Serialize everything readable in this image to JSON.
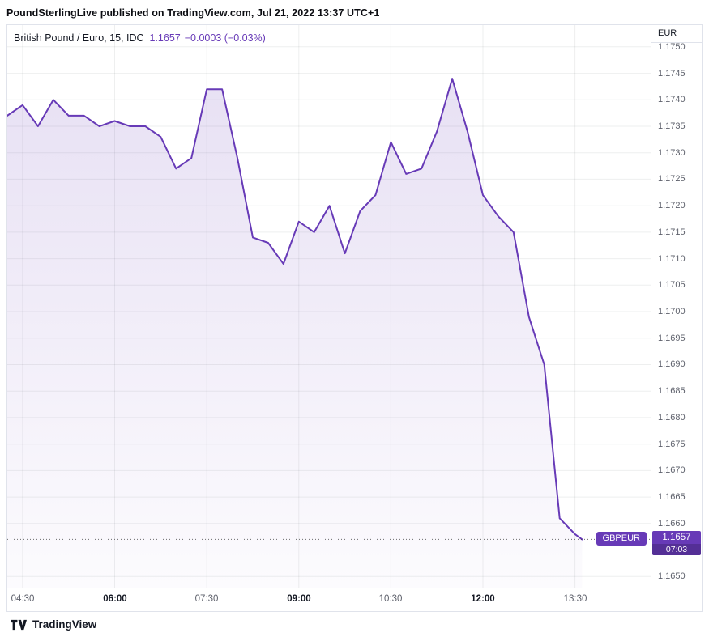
{
  "header": {
    "title": "PoundSterlingLive published on TradingView.com, Jul 21, 2022 13:37 UTC+1"
  },
  "legend": {
    "symbol": "British Pound / Euro, 15, IDC",
    "last_price": "1.1657",
    "change": "−0.0003 (−0.03%)"
  },
  "price_axis": {
    "currency": "EUR",
    "labels": [
      "1.1750",
      "1.1745",
      "1.1740",
      "1.1735",
      "1.1730",
      "1.1725",
      "1.1720",
      "1.1715",
      "1.1710",
      "1.1705",
      "1.1700",
      "1.1695",
      "1.1690",
      "1.1685",
      "1.1680",
      "1.1675",
      "1.1670",
      "1.1665",
      "1.1660",
      "1.1650"
    ],
    "badge_price": "1.1657",
    "badge_countdown": "07:03"
  },
  "price_line_badge": {
    "symbol": "GBPEUR"
  },
  "time_axis": {
    "labels": [
      {
        "text": "04:30",
        "major": false
      },
      {
        "text": "06:00",
        "major": true
      },
      {
        "text": "07:30",
        "major": false
      },
      {
        "text": "09:00",
        "major": true
      },
      {
        "text": "10:30",
        "major": false
      },
      {
        "text": "12:00",
        "major": true
      },
      {
        "text": "13:30",
        "major": false
      }
    ]
  },
  "footer": {
    "brand": "TradingView"
  },
  "colors": {
    "accent_purple": "#673ab7",
    "grid": "rgba(42,46,57,0.08)",
    "border": "#e0e3eb",
    "axis_text": "#5d606b",
    "text_dark": "#131722",
    "area_top": "rgba(103,58,183,0.17)",
    "area_bottom": "rgba(103,58,183,0.02)",
    "price_dots": "#3c3c3c"
  },
  "chart_data": {
    "type": "area",
    "title": "British Pound / Euro, 15, IDC",
    "ylabel": "EUR",
    "legend_position": "top-left",
    "grid": true,
    "x": [
      "04:15",
      "04:30",
      "04:45",
      "05:00",
      "05:15",
      "05:30",
      "05:45",
      "06:00",
      "06:15",
      "06:30",
      "06:45",
      "07:00",
      "07:15",
      "07:30",
      "07:45",
      "08:00",
      "08:15",
      "08:30",
      "08:45",
      "09:00",
      "09:15",
      "09:30",
      "09:45",
      "10:00",
      "10:15",
      "10:30",
      "10:45",
      "11:00",
      "11:15",
      "11:30",
      "11:45",
      "12:00",
      "12:15",
      "12:30",
      "12:45",
      "13:00",
      "13:15",
      "13:30",
      "13:37"
    ],
    "values": [
      1.1737,
      1.1739,
      1.1735,
      1.174,
      1.1737,
      1.1737,
      1.1735,
      1.1736,
      1.1735,
      1.1735,
      1.1733,
      1.1727,
      1.1729,
      1.1742,
      1.1742,
      1.1729,
      1.1714,
      1.1713,
      1.1709,
      1.1717,
      1.1715,
      1.172,
      1.1711,
      1.1719,
      1.1722,
      1.1732,
      1.1726,
      1.1727,
      1.1734,
      1.1744,
      1.1734,
      1.1722,
      1.1718,
      1.1715,
      1.1699,
      1.169,
      1.1661,
      1.1658,
      1.1657
    ],
    "last_price": 1.1657,
    "ylim": [
      1.16479,
      1.17541
    ],
    "y_tick_step": 0.0005,
    "x_ticks": [
      "04:30",
      "06:00",
      "07:30",
      "09:00",
      "10:30",
      "12:00",
      "13:30"
    ],
    "time_window": [
      "04:15",
      "14:44"
    ]
  }
}
